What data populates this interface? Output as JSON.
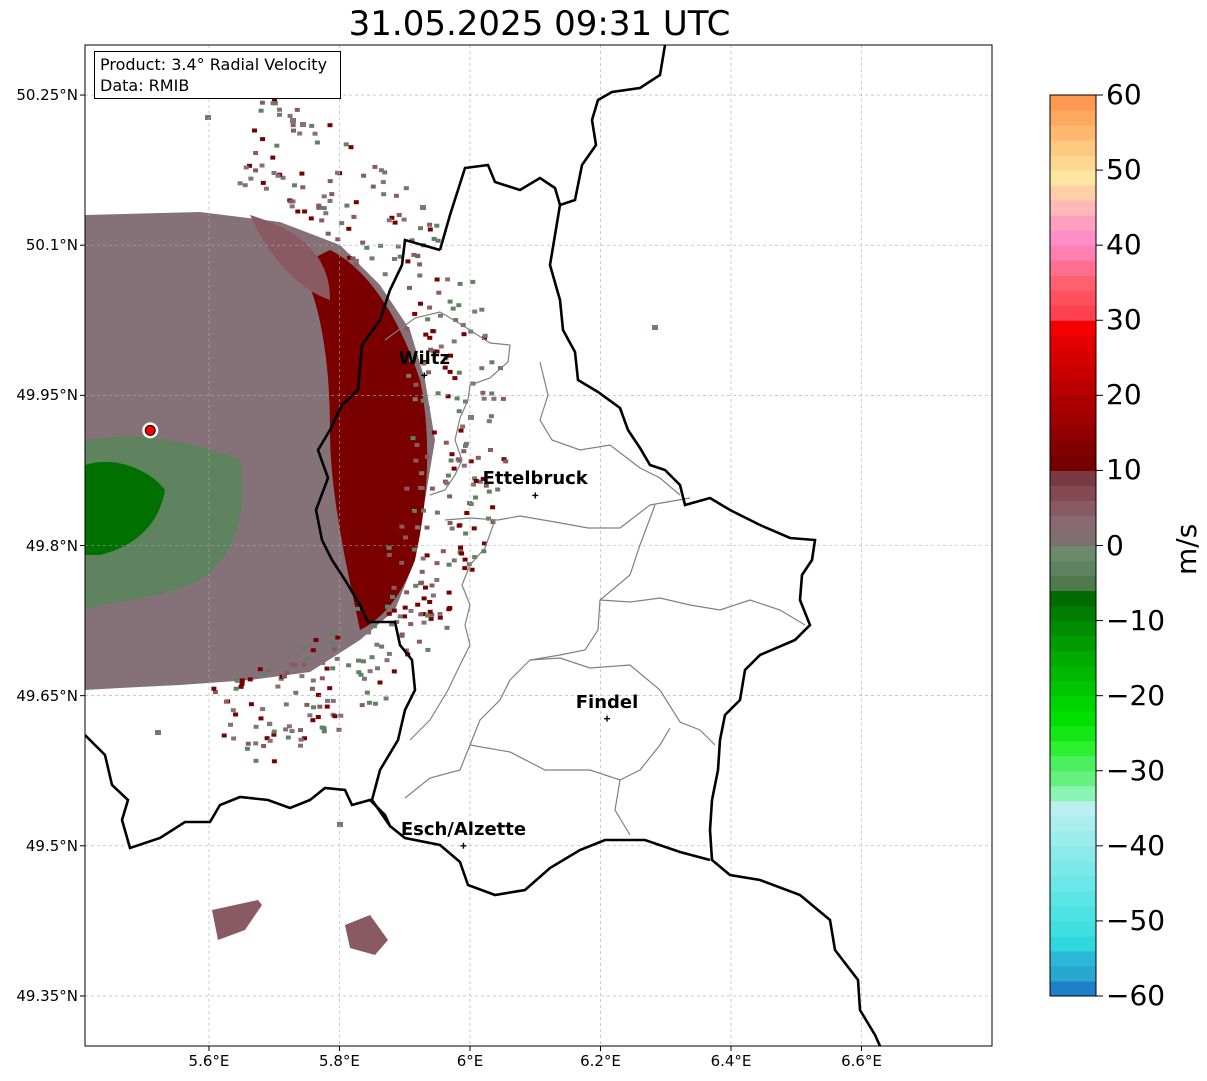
{
  "title": "31.05.2025 09:31 UTC",
  "info_box": {
    "product": "Product: 3.4° Radial Velocity",
    "source": "Data: RMIB"
  },
  "map": {
    "lon_range": [
      5.41,
      6.8
    ],
    "lat_range": [
      49.3,
      50.3
    ],
    "lon_ticks": [
      {
        "value": 5.6,
        "label": "5.6°E"
      },
      {
        "value": 5.8,
        "label": "5.8°E"
      },
      {
        "value": 6.0,
        "label": "6°E"
      },
      {
        "value": 6.2,
        "label": "6.2°E"
      },
      {
        "value": 6.4,
        "label": "6.4°E"
      },
      {
        "value": 6.6,
        "label": "6.6°E"
      }
    ],
    "lat_ticks": [
      {
        "value": 50.25,
        "label": "50.25°N"
      },
      {
        "value": 50.1,
        "label": "50.1°N"
      },
      {
        "value": 49.95,
        "label": "49.95°N"
      },
      {
        "value": 49.8,
        "label": "49.8°N"
      },
      {
        "value": 49.65,
        "label": "49.65°N"
      },
      {
        "value": 49.5,
        "label": "49.5°N"
      },
      {
        "value": 49.35,
        "label": "49.35°N"
      }
    ],
    "radar_site": {
      "lon": 5.51,
      "lat": 49.915,
      "color": "#ff0000"
    },
    "cities": [
      {
        "name": "Wiltz",
        "lon": 5.93,
        "lat": 49.97
      },
      {
        "name": "Ettelbruck",
        "lon": 6.1,
        "lat": 49.85
      },
      {
        "name": "Findel",
        "lon": 6.21,
        "lat": 49.627
      },
      {
        "name": "Esch/Alzette",
        "lon": 5.99,
        "lat": 49.5
      }
    ]
  },
  "colorbar": {
    "unit": "m/s",
    "min": -60,
    "max": 60,
    "ticks": [
      {
        "value": 60,
        "label": "60"
      },
      {
        "value": 50,
        "label": "50"
      },
      {
        "value": 40,
        "label": "40"
      },
      {
        "value": 30,
        "label": "30"
      },
      {
        "value": 20,
        "label": "20"
      },
      {
        "value": 10,
        "label": "10"
      },
      {
        "value": 0,
        "label": "0"
      },
      {
        "value": -10,
        "label": "−10"
      },
      {
        "value": -20,
        "label": "−20"
      },
      {
        "value": -30,
        "label": "−30"
      },
      {
        "value": -40,
        "label": "−40"
      },
      {
        "value": -50,
        "label": "−50"
      },
      {
        "value": -60,
        "label": "−60"
      }
    ],
    "bands": [
      {
        "from": -60,
        "to": -58,
        "color": "#1f7fc8"
      },
      {
        "from": -58,
        "to": -56,
        "color": "#2aa7d0"
      },
      {
        "from": -56,
        "to": -54,
        "color": "#2bb8d8"
      },
      {
        "from": -54,
        "to": -52,
        "color": "#2fd8df"
      },
      {
        "from": -52,
        "to": -50,
        "color": "#3ee0e0"
      },
      {
        "from": -50,
        "to": -48,
        "color": "#4ce3e2"
      },
      {
        "from": -48,
        "to": -46,
        "color": "#5be5e4"
      },
      {
        "from": -46,
        "to": -44,
        "color": "#6ae7e6"
      },
      {
        "from": -44,
        "to": -42,
        "color": "#7ae9e8"
      },
      {
        "from": -42,
        "to": -40,
        "color": "#8aebea"
      },
      {
        "from": -40,
        "to": -38,
        "color": "#9aedec"
      },
      {
        "from": -38,
        "to": -36,
        "color": "#aaefee"
      },
      {
        "from": -36,
        "to": -34,
        "color": "#baf1f0"
      },
      {
        "from": -34,
        "to": -32,
        "color": "#8af5b0"
      },
      {
        "from": -32,
        "to": -30,
        "color": "#66f080"
      },
      {
        "from": -30,
        "to": -28,
        "color": "#4af060"
      },
      {
        "from": -28,
        "to": -26,
        "color": "#2ef030"
      },
      {
        "from": -26,
        "to": -24,
        "color": "#14e814"
      },
      {
        "from": -24,
        "to": -22,
        "color": "#00e000"
      },
      {
        "from": -22,
        "to": -20,
        "color": "#00d400"
      },
      {
        "from": -20,
        "to": -18,
        "color": "#00c600"
      },
      {
        "from": -18,
        "to": -16,
        "color": "#00b800"
      },
      {
        "from": -16,
        "to": -14,
        "color": "#00aa00"
      },
      {
        "from": -14,
        "to": -12,
        "color": "#009c00"
      },
      {
        "from": -12,
        "to": -10,
        "color": "#008c00"
      },
      {
        "from": -10,
        "to": -8,
        "color": "#007c00"
      },
      {
        "from": -8,
        "to": -6,
        "color": "#006c00"
      },
      {
        "from": -6,
        "to": -4,
        "color": "#4e7a4e"
      },
      {
        "from": -4,
        "to": -2,
        "color": "#5e835e"
      },
      {
        "from": -2,
        "to": 0,
        "color": "#6a8a6a"
      },
      {
        "from": 0,
        "to": 2,
        "color": "#7e7070"
      },
      {
        "from": 2,
        "to": 4,
        "color": "#8a6a72"
      },
      {
        "from": 4,
        "to": 6,
        "color": "#8a5a62"
      },
      {
        "from": 6,
        "to": 8,
        "color": "#844852"
      },
      {
        "from": 8,
        "to": 10,
        "color": "#7a3a42"
      },
      {
        "from": 10,
        "to": 12,
        "color": "#760000"
      },
      {
        "from": 12,
        "to": 14,
        "color": "#820000"
      },
      {
        "from": 14,
        "to": 16,
        "color": "#900000"
      },
      {
        "from": 16,
        "to": 18,
        "color": "#9e0000"
      },
      {
        "from": 18,
        "to": 20,
        "color": "#ac0000"
      },
      {
        "from": 20,
        "to": 22,
        "color": "#ba0000"
      },
      {
        "from": 22,
        "to": 24,
        "color": "#c80000"
      },
      {
        "from": 24,
        "to": 26,
        "color": "#d60000"
      },
      {
        "from": 26,
        "to": 28,
        "color": "#e40000"
      },
      {
        "from": 28,
        "to": 30,
        "color": "#f50000"
      },
      {
        "from": 30,
        "to": 32,
        "color": "#ff4050"
      },
      {
        "from": 32,
        "to": 34,
        "color": "#ff5060"
      },
      {
        "from": 34,
        "to": 36,
        "color": "#ff6070"
      },
      {
        "from": 36,
        "to": 38,
        "color": "#ff7090"
      },
      {
        "from": 38,
        "to": 40,
        "color": "#ff80b0"
      },
      {
        "from": 40,
        "to": 42,
        "color": "#ff8ec8"
      },
      {
        "from": 42,
        "to": 44,
        "color": "#ffa0c0"
      },
      {
        "from": 44,
        "to": 46,
        "color": "#ffb8b8"
      },
      {
        "from": 46,
        "to": 48,
        "color": "#ffd0a8"
      },
      {
        "from": 48,
        "to": 50,
        "color": "#ffe6a0"
      },
      {
        "from": 50,
        "to": 52,
        "color": "#ffd890"
      },
      {
        "from": 52,
        "to": 54,
        "color": "#ffc880"
      },
      {
        "from": 54,
        "to": 56,
        "color": "#ffb870"
      },
      {
        "from": 56,
        "to": 58,
        "color": "#ffa860"
      },
      {
        "from": 58,
        "to": 60,
        "color": "#ff9850"
      }
    ]
  },
  "echo_colors": {
    "positive_strong": "#7a0000",
    "positive_weak": "#8a5a62",
    "near_zero": "#857278",
    "negative_weak": "#5e835e",
    "negative_strong": "#007000"
  }
}
